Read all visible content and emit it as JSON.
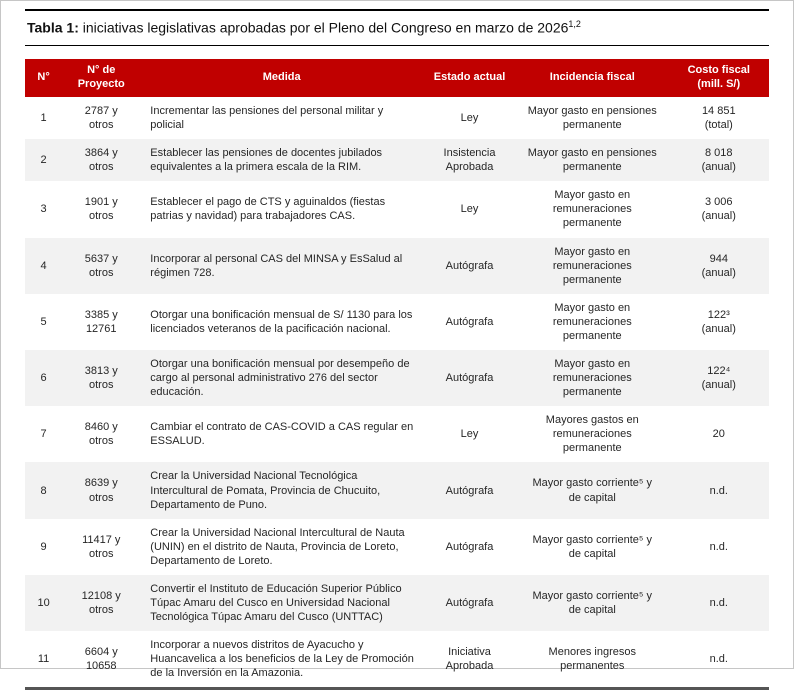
{
  "colors": {
    "header_bg": "#C00000",
    "row_alt_bg": "#F2F2F2"
  },
  "page": {
    "title_label": "Tabla 1:",
    "title_text": " iniciativas legislativas aprobadas por el Pleno del Congreso en marzo de 2026",
    "title_superscript": "1,2"
  },
  "table": {
    "headers": [
      "N°",
      "N° de\nProyecto",
      "Medida",
      "Estado actual",
      "Incidencia fiscal",
      "Costo fiscal\n(mill. S/)"
    ],
    "rows": [
      {
        "num": "1",
        "proyecto": "2787 y\notros",
        "medida": "Incrementar las pensiones del personal militar y policial",
        "estado": "Ley",
        "incidencia": "Mayor gasto en pensiones\npermanente",
        "costo": "14 851\n(total)"
      },
      {
        "num": "2",
        "proyecto": "3864 y\notros",
        "medida": "Establecer las pensiones de docentes jubilados equivalentes a la primera escala de la RIM.",
        "estado": "Insistencia\nAprobada",
        "incidencia": "Mayor gasto en pensiones\npermanente",
        "costo": "8 018\n(anual)"
      },
      {
        "num": "3",
        "proyecto": "1901 y\notros",
        "medida": "Establecer el pago de CTS y aguinaldos (fiestas patrias y navidad) para trabajadores CAS.",
        "estado": "Ley",
        "incidencia": "Mayor gasto en\nremuneraciones\npermanente",
        "costo": "3 006\n(anual)"
      },
      {
        "num": "4",
        "proyecto": "5637 y\notros",
        "medida": "Incorporar al personal CAS del MINSA y EsSalud al régimen 728.",
        "estado": "Autógrafa",
        "incidencia": "Mayor gasto en\nremuneraciones\npermanente",
        "costo": "944\n(anual)"
      },
      {
        "num": "5",
        "proyecto": "3385 y\n12761",
        "medida": "Otorgar una bonificación mensual de S/ 1130 para los licenciados veteranos de la pacificación nacional.",
        "estado": "Autógrafa",
        "incidencia": "Mayor gasto en\nremuneraciones\npermanente",
        "costo": "122³\n(anual)"
      },
      {
        "num": "6",
        "proyecto": "3813 y\notros",
        "medida": "Otorgar una bonificación mensual por desempeño de cargo al personal administrativo 276 del sector educación.",
        "estado": "Autógrafa",
        "incidencia": "Mayor gasto en\nremuneraciones\npermanente",
        "costo": "122⁴\n(anual)"
      },
      {
        "num": "7",
        "proyecto": "8460 y\notros",
        "medida": "Cambiar el contrato de CAS-COVID a CAS regular en ESSALUD.",
        "estado": "Ley",
        "incidencia": "Mayores gastos en\nremuneraciones\npermanente",
        "costo": "20"
      },
      {
        "num": "8",
        "proyecto": "8639 y\notros",
        "medida": "Crear la Universidad Nacional Tecnológica Intercultural de Pomata, Provincia de Chucuito, Departamento de Puno.",
        "estado": "Autógrafa",
        "incidencia": "Mayor gasto corriente⁵ y\nde capital",
        "costo": "n.d."
      },
      {
        "num": "9",
        "proyecto": "11417 y\notros",
        "medida": "Crear la Universidad Nacional Intercultural de Nauta (UNIN) en el distrito de Nauta, Provincia de Loreto, Departamento de Loreto.",
        "estado": "Autógrafa",
        "incidencia": "Mayor gasto corriente⁵ y\nde capital",
        "costo": "n.d."
      },
      {
        "num": "10",
        "proyecto": "12108 y\notros",
        "medida": "Convertir el Instituto de Educación Superior Público Túpac Amaru del Cusco en Universidad Nacional Tecnológica Túpac Amaru del Cusco (UNTTAC)",
        "estado": "Autógrafa",
        "incidencia": "Mayor gasto corriente⁵ y\nde capital",
        "costo": "n.d."
      },
      {
        "num": "11",
        "proyecto": "6604 y\n10658",
        "medida": "Incorporar a nuevos distritos de Ayacucho y Huancavelica a los beneficios de la Ley de Promoción de la Inversión en la Amazonia.",
        "estado": "Iniciativa\nAprobada",
        "incidencia": "Menores ingresos\npermanentes",
        "costo": "n.d."
      }
    ]
  }
}
